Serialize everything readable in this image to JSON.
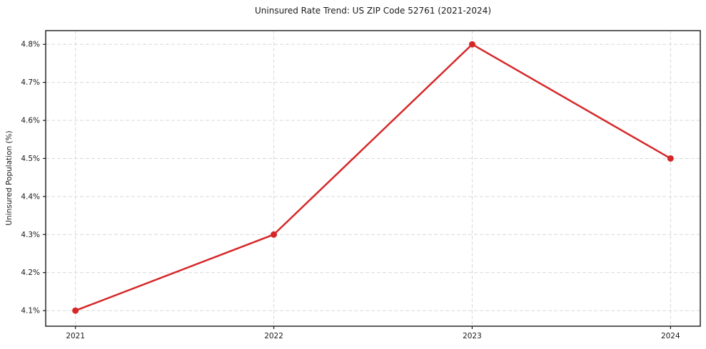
{
  "chart_data": {
    "type": "line",
    "title": "Uninsured Rate Trend: US ZIP Code 52761 (2021-2024)",
    "xlabel": "",
    "ylabel": "Uninsured Population (%)",
    "x": [
      2021,
      2022,
      2023,
      2024
    ],
    "values": [
      4.1,
      4.3,
      4.8,
      4.5
    ],
    "xtick_labels": [
      "2021",
      "2022",
      "2023",
      "2024"
    ],
    "yticks": [
      4.1,
      4.2,
      4.3,
      4.4,
      4.5,
      4.6,
      4.7,
      4.8
    ],
    "ytick_labels": [
      "4.1%",
      "4.2%",
      "4.3%",
      "4.4%",
      "4.5%",
      "4.6%",
      "4.7%",
      "4.8%"
    ],
    "xlim": [
      2020.85,
      2024.15
    ],
    "ylim": [
      4.059,
      4.836
    ],
    "line_color": "#d62728",
    "marker": "circle",
    "marker_radius": 4.5,
    "line_width": 2.5,
    "grid": true,
    "grid_style": "dashed",
    "grid_color": "#d9d9d9",
    "legend": "none",
    "background_color": "#ffffff",
    "text_color": "#1a1a1a"
  }
}
